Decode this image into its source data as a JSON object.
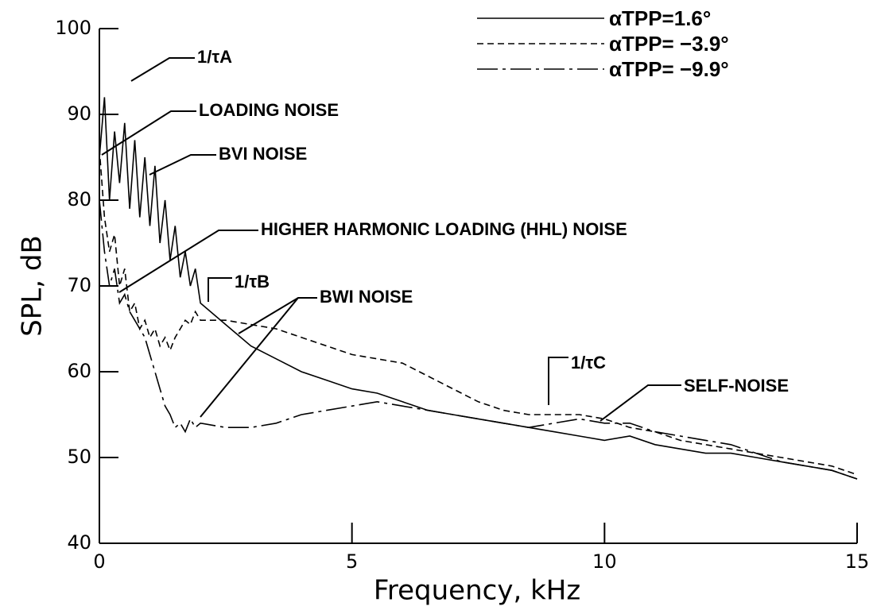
{
  "chart_data": {
    "type": "line",
    "xlabel": "Frequency, kHz",
    "ylabel": "SPL, dB",
    "x": [
      0,
      0.1,
      0.2,
      0.3,
      0.4,
      0.5,
      0.6,
      0.7,
      0.8,
      0.9,
      1.0,
      1.1,
      1.2,
      1.3,
      1.4,
      1.5,
      1.6,
      1.7,
      1.8,
      1.9,
      2.0,
      2.5,
      3,
      3.5,
      4,
      4.5,
      5,
      5.5,
      6,
      6.5,
      7,
      7.5,
      8,
      8.5,
      9,
      9.5,
      10,
      10.5,
      11,
      11.5,
      12,
      12.5,
      13,
      13.5,
      14,
      14.5,
      15
    ],
    "series": [
      {
        "name": "αTPP=1.6°",
        "color": "#000000",
        "linestyle": "solid",
        "values": [
          85,
          92,
          80,
          88,
          82,
          89,
          79,
          87,
          78,
          85,
          77,
          84,
          75,
          80,
          73,
          77,
          71,
          74,
          70,
          72,
          68,
          65.5,
          63,
          61.5,
          60,
          59,
          58,
          57.5,
          56.5,
          55.5,
          55,
          54.5,
          54,
          53.5,
          53,
          52.5,
          52,
          52.5,
          51.5,
          51,
          50.5,
          50.5,
          50,
          49.5,
          49,
          48.5,
          47.5
        ]
      },
      {
        "name": "αTPP= −3.9°",
        "color": "#000000",
        "linestyle": "dashed",
        "values": [
          86,
          78,
          74,
          76,
          70,
          72,
          67,
          68,
          65,
          66,
          64,
          65,
          63,
          64,
          62.5,
          64,
          65,
          66,
          65.5,
          67,
          66,
          66,
          65.5,
          65,
          64,
          63,
          62,
          61.5,
          61,
          59.5,
          58,
          56.5,
          55.5,
          55,
          55,
          55,
          54.5,
          53.5,
          53,
          52,
          51.5,
          51,
          50.5,
          50,
          49.5,
          49,
          48
        ]
      },
      {
        "name": "αTPP= −9.9°",
        "color": "#000000",
        "linestyle": "dashdot",
        "values": [
          80,
          74,
          70,
          72,
          68,
          69,
          67,
          66,
          65,
          64,
          62,
          60,
          58,
          56,
          55,
          53.5,
          54,
          53,
          54.5,
          53.5,
          54,
          53.5,
          53.5,
          54,
          55,
          55.5,
          56,
          56.5,
          56,
          55.5,
          55,
          54.5,
          54,
          53.5,
          54,
          54.5,
          54,
          54,
          53,
          52.5,
          52,
          51.5,
          50.5,
          49.5,
          49,
          48.5,
          47.5
        ]
      }
    ],
    "annotations": [
      "1/τA",
      "LOADING NOISE",
      "BVI NOISE",
      "HIGHER HARMONIC LOADING (HHL) NOISE",
      "1/τB",
      "BWI NOISE",
      "1/τC",
      "SELF-NOISE"
    ],
    "xlim": [
      0,
      15
    ],
    "xticks": [
      0,
      5,
      10,
      15
    ],
    "ylim": [
      40,
      100
    ],
    "yticks": [
      40,
      50,
      60,
      70,
      80,
      90,
      100
    ],
    "legend": "upper right",
    "grid": false
  }
}
